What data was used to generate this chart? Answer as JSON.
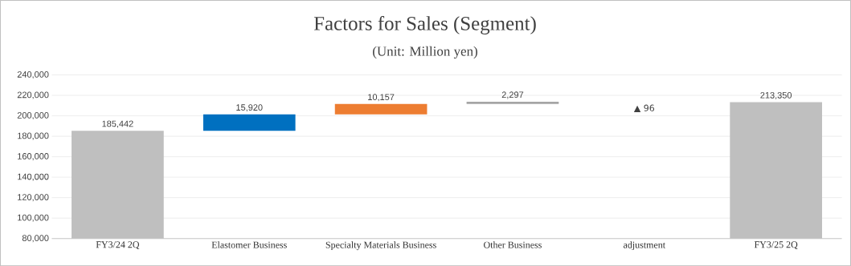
{
  "chart_data": {
    "type": "bar",
    "title": "Factors for Sales (Segment)",
    "subtitle": "(Unit: Million yen)",
    "categories": [
      "FY3/24 2Q",
      "Elastomer Business",
      "Specialty Materials Business",
      "Other Business",
      "adjustment",
      "FY3/25 2Q"
    ],
    "values": [
      185442,
      15920,
      10157,
      2297,
      -96,
      213350
    ],
    "base": [
      null,
      185442,
      201362,
      211519,
      213816,
      null
    ],
    "colors": [
      "#bfbfbf",
      "#0070c0",
      "#ed7d31",
      "#a5a5a5",
      "#404040",
      "#bfbfbf"
    ],
    "value_labels": [
      "185,442",
      "15,920",
      "10,157",
      "2,297",
      "▲ 96",
      "213,350"
    ],
    "ylim": [
      80000,
      240000
    ],
    "yticks": [
      {
        "value": 80000,
        "label": "80,000"
      },
      {
        "value": 100000,
        "label": "100,000"
      },
      {
        "value": 120000,
        "label": "120,000"
      },
      {
        "value": 140000,
        "label": "140,000"
      },
      {
        "value": 160000,
        "label": "160,000"
      },
      {
        "value": 180000,
        "label": "180,000"
      },
      {
        "value": 200000,
        "label": "200,000"
      },
      {
        "value": 220000,
        "label": "220,000"
      },
      {
        "value": 240000,
        "label": "240,000"
      }
    ],
    "grid": "y"
  }
}
